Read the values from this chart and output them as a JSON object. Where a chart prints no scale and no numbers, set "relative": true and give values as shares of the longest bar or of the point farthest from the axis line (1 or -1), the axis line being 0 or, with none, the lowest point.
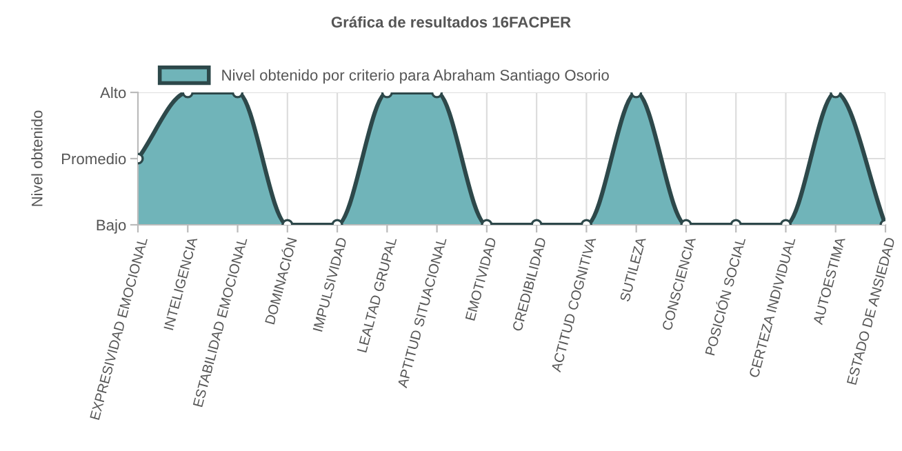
{
  "chart_data": {
    "type": "area",
    "title": "Gráfica de resultados 16FACPER",
    "ylabel": "Nivel obtenido",
    "categories": [
      "EXPRESIVIDAD EMOCIONAL",
      "INTELIGENCIA",
      "ESTABILIDAD EMOCIONAL",
      "DOMINACIÓN",
      "IMPULSIVIDAD",
      "LEALTAD GRUPAL",
      "APTITUD SITUACIONAL",
      "EMOTIVIDAD",
      "CREDIBILIDAD",
      "ACTITUD COGNITIVA",
      "SUTILEZA",
      "CONSCIENCIA",
      "POSICIÓN SOCIAL",
      "CERTEZA INDIVIDUAL",
      "AUTOESTIMA",
      "ESTADO DE ANSIEDAD"
    ],
    "series": [
      {
        "name": "Nivel obtenido por criterio para Abraham Santiago Osorio",
        "color": "#70b4b9",
        "values": [
          0.5,
          1,
          1,
          0,
          0,
          1,
          1,
          0,
          0,
          0,
          1,
          0,
          0,
          0,
          1,
          0
        ]
      }
    ],
    "relative": true,
    "y_categories": [
      "Alto",
      "Promedio",
      "Bajo"
    ],
    "grid": true,
    "legend": "top",
    "marker": "circle",
    "line_style": "solid"
  }
}
